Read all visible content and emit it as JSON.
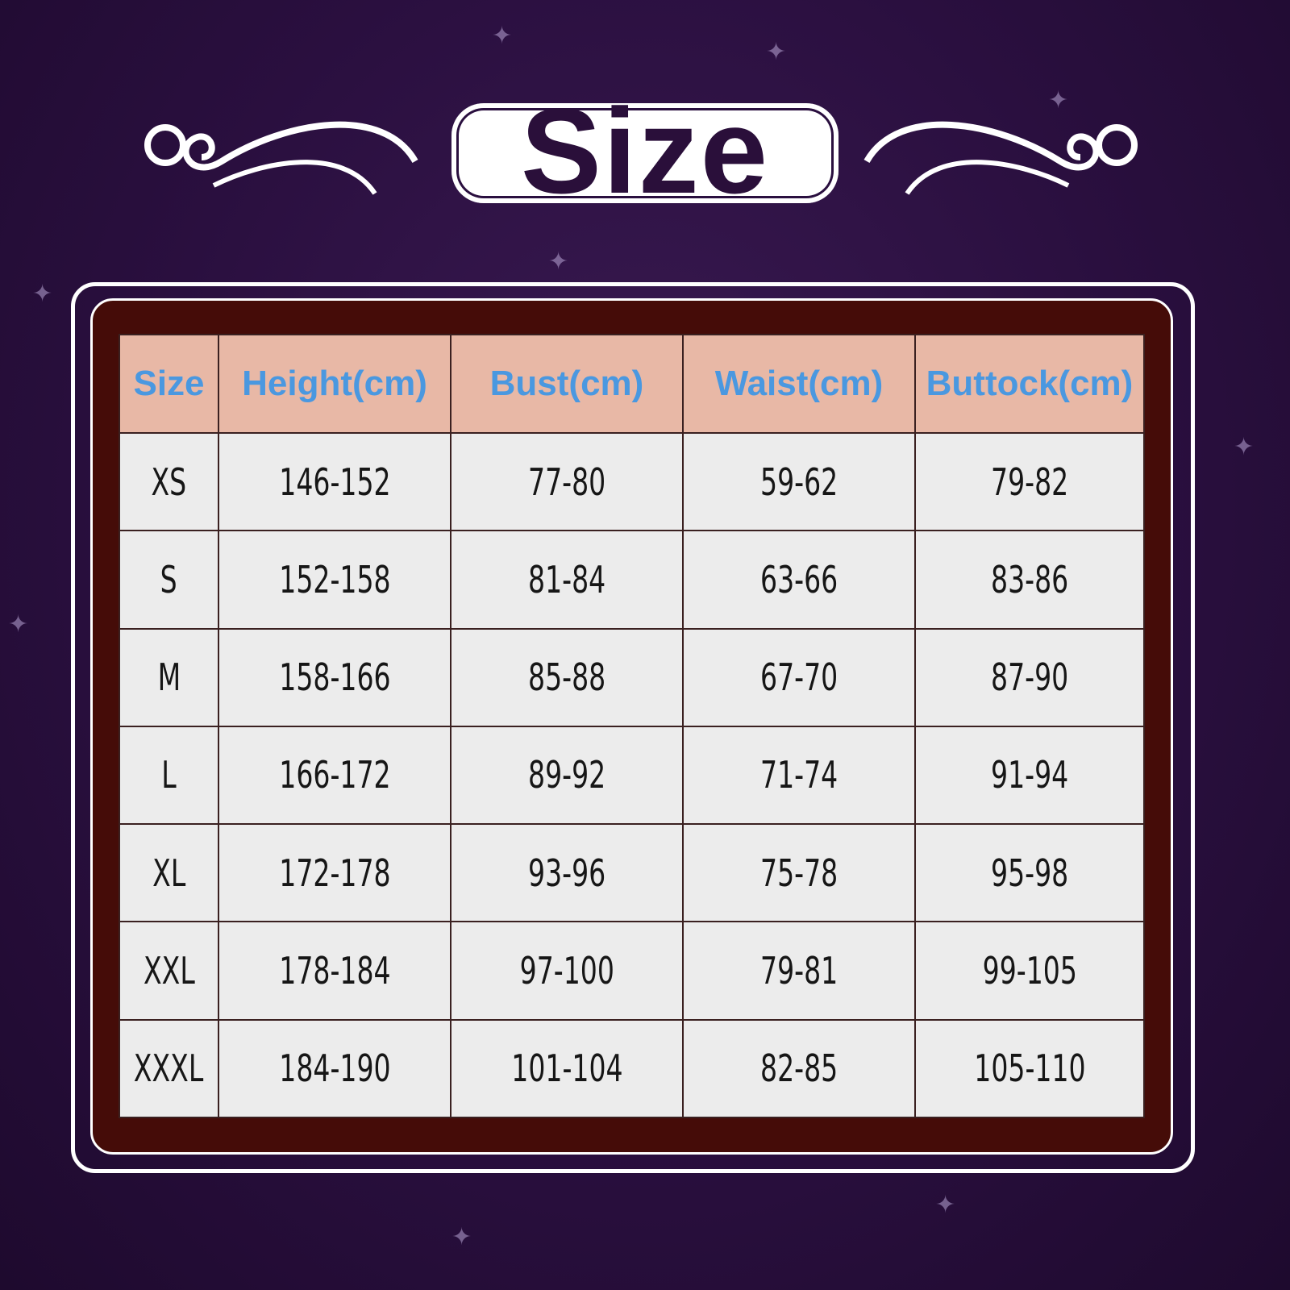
{
  "title": "Size",
  "colors": {
    "background": "#2a0f3f",
    "panel": "#450c08",
    "header_bg": "#e8b8a6",
    "header_text": "#4a98e0",
    "cell_bg": "#ececec"
  },
  "table": {
    "headers": [
      "Size",
      "Height(cm)",
      "Bust(cm)",
      "Waist(cm)",
      "Buttock(cm)"
    ],
    "rows": [
      [
        "XS",
        "146-152",
        "77-80",
        "59-62",
        "79-82"
      ],
      [
        "S",
        "152-158",
        "81-84",
        "63-66",
        "83-86"
      ],
      [
        "M",
        "158-166",
        "85-88",
        "67-70",
        "87-90"
      ],
      [
        "L",
        "166-172",
        "89-92",
        "71-74",
        "91-94"
      ],
      [
        "XL",
        "172-178",
        "93-96",
        "75-78",
        "95-98"
      ],
      [
        "XXL",
        "178-184",
        "97-100",
        "79-81",
        "99-105"
      ],
      [
        "XXXL",
        "184-190",
        "101-104",
        "82-85",
        "105-110"
      ]
    ]
  }
}
